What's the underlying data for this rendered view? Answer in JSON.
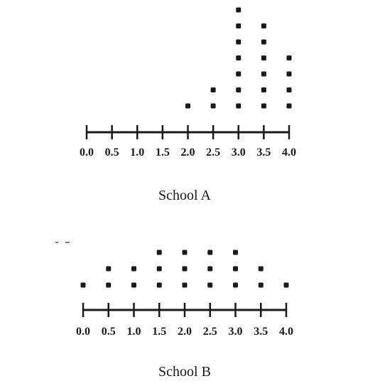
{
  "chart_data": [
    {
      "type": "dot",
      "title": "School A",
      "xlabel": "",
      "ylabel": "",
      "x_ticks": [
        "0.0",
        "0.5",
        "1.0",
        "1.5",
        "2.0",
        "2.5",
        "3.0",
        "3.5",
        "4.0"
      ],
      "xlim": [
        0.0,
        4.0
      ],
      "points": [
        {
          "x": 2.0,
          "count": 1
        },
        {
          "x": 2.5,
          "count": 2
        },
        {
          "x": 3.0,
          "count": 7
        },
        {
          "x": 3.5,
          "count": 6
        },
        {
          "x": 4.0,
          "count": 4
        }
      ],
      "colors": {
        "dot": "#1a1a1a",
        "axis": "#1a1a1a"
      }
    },
    {
      "type": "dot",
      "title": "School B",
      "xlabel": "",
      "ylabel": "",
      "x_ticks": [
        "0.0",
        "0.5",
        "1.0",
        "1.5",
        "2.0",
        "2.5",
        "3.0",
        "3.5",
        "4.0"
      ],
      "xlim": [
        0.0,
        4.0
      ],
      "points": [
        {
          "x": 0.0,
          "count": 1
        },
        {
          "x": 0.5,
          "count": 2
        },
        {
          "x": 1.0,
          "count": 2
        },
        {
          "x": 1.5,
          "count": 3
        },
        {
          "x": 2.0,
          "count": 3
        },
        {
          "x": 2.5,
          "count": 3
        },
        {
          "x": 3.0,
          "count": 3
        },
        {
          "x": 3.5,
          "count": 2
        },
        {
          "x": 4.0,
          "count": 1
        }
      ],
      "colors": {
        "dot": "#1a1a1a",
        "axis": "#1a1a1a"
      }
    }
  ]
}
